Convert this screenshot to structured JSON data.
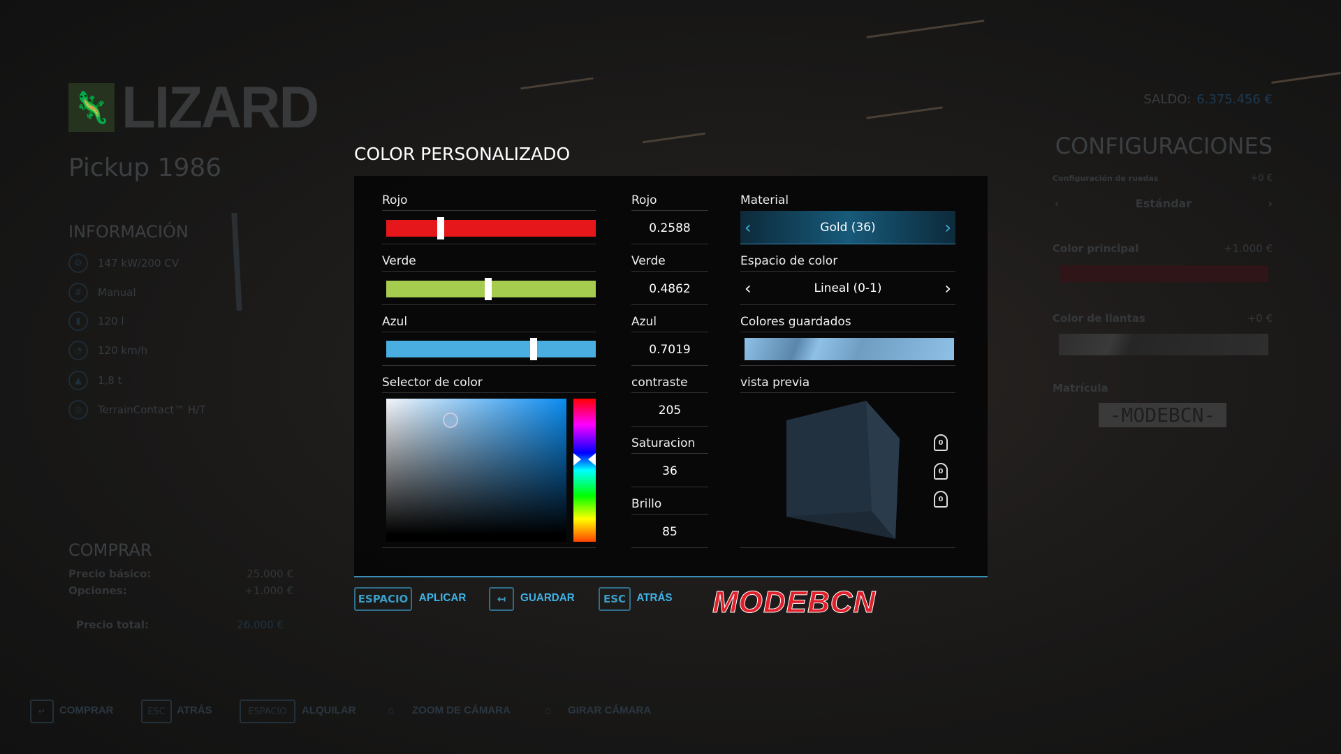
{
  "background": {
    "brand": "LIZARD",
    "vehicle_name": "Pickup 1986",
    "info_title": "INFORMACIÓN",
    "info_items": [
      {
        "icon": "engine-icon",
        "text": "147 kW/200 CV"
      },
      {
        "icon": "gearbox-icon",
        "text": "Manual"
      },
      {
        "icon": "fuel-icon",
        "text": "120 l"
      },
      {
        "icon": "speedometer-icon",
        "text": "120 km/h"
      },
      {
        "icon": "weight-icon",
        "text": "1,8 t"
      },
      {
        "icon": "tire-icon",
        "text": "TerrainContact™ H/T"
      }
    ],
    "buy_title": "COMPRAR",
    "base_price_label": "Precio básico:",
    "base_price": "25.000 €",
    "options_label": "Opciones:",
    "options_price": "+1.000 €",
    "total_label": "Precio total:",
    "total_price": "26.000 €",
    "balance_label": "SALDO:",
    "balance_value": "6.375.456 €",
    "config_title": "CONFIGURACIONES",
    "wheel_config_label": "Configuración de ruedas",
    "wheel_config_price": "+0 €",
    "wheel_config_value": "Estándar",
    "main_color_label": "Color principal",
    "main_color_price": "+1.000 €",
    "rim_color_label": "Color de llantas",
    "rim_color_price": "+0 €",
    "plate_label": "Matrícula",
    "plate_value": "-MODEBCN-",
    "hints": [
      {
        "key": "↵",
        "label": "COMPRAR"
      },
      {
        "key": "ESC",
        "label": "ATRÁS"
      },
      {
        "key": "ESPACIO",
        "label": "ALQUILAR"
      },
      {
        "icon": "mouse-wheel-icon",
        "label": "ZOOM DE CÁMARA"
      },
      {
        "icon": "mouse-icon",
        "label": "GIRAR CÁMARA"
      }
    ]
  },
  "dialog": {
    "title": "COLOR PERSONALIZADO",
    "sliders": [
      {
        "label": "Rojo",
        "value": 0.2588,
        "color": "#e5171b"
      },
      {
        "label": "Verde",
        "value": 0.4862,
        "color": "#a6cc4f"
      },
      {
        "label": "Azul",
        "value": 0.7019,
        "color": "#4aaee0"
      }
    ],
    "values": [
      {
        "label": "Rojo",
        "value": "0.2588"
      },
      {
        "label": "Verde",
        "value": "0.4862"
      },
      {
        "label": "Azul",
        "value": "0.7019"
      },
      {
        "label": "contraste",
        "value": "205"
      },
      {
        "label": "Saturacion",
        "value": "36"
      },
      {
        "label": "Brillo",
        "value": "85"
      }
    ],
    "picker_label": "Selector de color",
    "material_label": "Material",
    "material_value": "Gold (36)",
    "color_space_label": "Espacio de color",
    "color_space_value": "Lineal (0-1)",
    "saved_colors_label": "Colores guardados",
    "saved_color": "#8fc0e6",
    "preview_label": "vista previa",
    "preview_icons": [
      "mouse-scroll-icon",
      "mouse-move-icon",
      "mouse-click-icon"
    ],
    "accent": "#3fb2e6"
  },
  "footer": {
    "actions": [
      {
        "key": "ESPACIO",
        "label": "APLICAR"
      },
      {
        "key": "↤",
        "label": "GUARDAR"
      },
      {
        "key": "ESC",
        "label": "ATRÁS"
      }
    ],
    "watermark": "MODEBCN"
  }
}
